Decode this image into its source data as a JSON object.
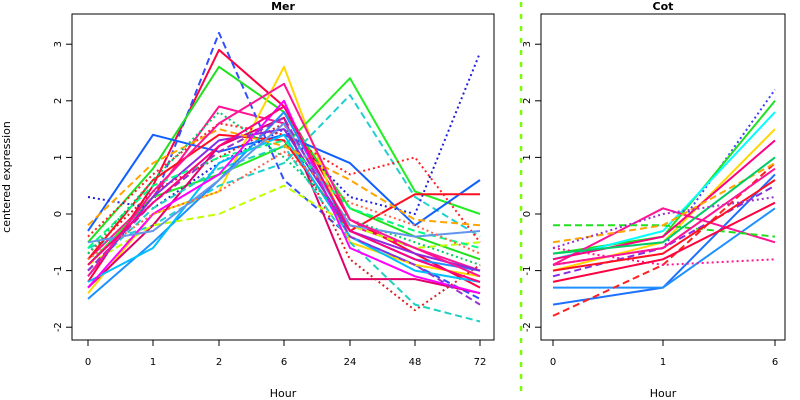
{
  "chart_data": [
    {
      "type": "line",
      "title": "Mer",
      "xlabel": "Hour",
      "ylabel": "centered expression",
      "categories": [
        "0",
        "1",
        "2",
        "6",
        "24",
        "48",
        "72"
      ],
      "ylim": [
        -2,
        3.3
      ],
      "yticks": [
        -2,
        -1,
        0,
        1,
        2,
        3
      ],
      "grid": false,
      "series": [
        {
          "values": [
            -0.8,
            0.3,
            1.9,
            1.6,
            -0.2,
            -0.6,
            -1.0
          ],
          "color": "#ff1493",
          "dash": "solid"
        },
        {
          "values": [
            -1.2,
            0.5,
            2.9,
            1.9,
            -0.1,
            -0.7,
            -1.3
          ],
          "color": "#ff0040",
          "dash": "solid"
        },
        {
          "values": [
            -1.0,
            0.2,
            3.2,
            0.6,
            -0.4,
            -0.9,
            -1.5
          ],
          "color": "#3050ff",
          "dash": "dashed"
        },
        {
          "values": [
            -0.5,
            0.8,
            2.6,
            1.8,
            0.1,
            -0.4,
            -0.8
          ],
          "color": "#20e020",
          "dash": "solid"
        },
        {
          "values": [
            -1.4,
            0.0,
            0.4,
            2.6,
            -0.5,
            -0.9,
            -1.1
          ],
          "color": "#ffd700",
          "dash": "solid"
        },
        {
          "values": [
            -0.9,
            0.3,
            0.7,
            1.2,
            2.4,
            0.4,
            0.0
          ],
          "color": "#22ee22",
          "dash": "solid"
        },
        {
          "values": [
            -0.6,
            -0.2,
            0.5,
            0.9,
            2.1,
            0.3,
            -0.4
          ],
          "color": "#20d0d0",
          "dash": "dashed"
        },
        {
          "values": [
            -0.3,
            1.4,
            1.1,
            1.4,
            0.9,
            -0.2,
            0.6
          ],
          "color": "#1060ff",
          "dash": "solid"
        },
        {
          "values": [
            0.3,
            0.1,
            0.9,
            1.5,
            0.3,
            0.0,
            2.85
          ],
          "color": "#2020dd",
          "dash": "dotted"
        },
        {
          "values": [
            -0.8,
            0.6,
            1.4,
            1.3,
            -0.3,
            0.35,
            0.35
          ],
          "color": "#ff1020",
          "dash": "solid"
        },
        {
          "values": [
            -0.4,
            0.7,
            1.6,
            1.4,
            0.7,
            1.0,
            -0.5
          ],
          "color": "#ff2020",
          "dash": "dotted"
        },
        {
          "values": [
            -1.3,
            -0.2,
            1.2,
            1.7,
            -1.15,
            -1.15,
            -1.4
          ],
          "color": "#e0006a",
          "dash": "solid"
        },
        {
          "values": [
            -0.7,
            0.4,
            1.0,
            1.6,
            -0.8,
            -1.7,
            -0.9
          ],
          "color": "#dd2020",
          "dash": "dotted"
        },
        {
          "values": [
            -1.0,
            0.1,
            0.8,
            1.2,
            -0.5,
            -1.6,
            -1.9
          ],
          "color": "#20d0c0",
          "dash": "dashed"
        },
        {
          "values": [
            -1.5,
            -0.5,
            0.6,
            1.8,
            -0.3,
            -0.8,
            -1.0
          ],
          "color": "#1e90ff",
          "dash": "solid"
        },
        {
          "values": [
            -1.2,
            -0.6,
            0.9,
            1.4,
            -0.4,
            -1.0,
            -1.2
          ],
          "color": "#00bfff",
          "dash": "solid"
        },
        {
          "values": [
            -0.9,
            -0.2,
            0.0,
            0.5,
            -0.2,
            -0.6,
            -0.5
          ],
          "color": "#c0ff00",
          "dash": "dashed"
        },
        {
          "values": [
            -1.1,
            0.3,
            1.3,
            1.5,
            -0.3,
            -0.7,
            -1.0
          ],
          "color": "#8a2be2",
          "dash": "solid"
        },
        {
          "values": [
            -0.6,
            0.5,
            1.0,
            1.3,
            0.1,
            -0.3,
            -0.6
          ],
          "color": "#00ff7f",
          "dash": "dashed"
        },
        {
          "values": [
            -0.2,
            0.9,
            1.5,
            1.2,
            0.6,
            -0.1,
            -0.2
          ],
          "color": "#ffa500",
          "dash": "dashed"
        },
        {
          "values": [
            -1.3,
            0.0,
            0.7,
            2.0,
            -0.6,
            -1.1,
            -1.4
          ],
          "color": "#ff00ff",
          "dash": "solid"
        },
        {
          "values": [
            -0.7,
            0.6,
            1.8,
            1.0,
            -0.1,
            -0.5,
            -0.9
          ],
          "color": "#00cc66",
          "dash": "dotted"
        },
        {
          "values": [
            -0.5,
            -0.3,
            0.6,
            1.6,
            -0.2,
            -0.4,
            -0.3
          ],
          "color": "#6495ed",
          "dash": "solid"
        },
        {
          "values": [
            -1.0,
            0.2,
            1.1,
            1.7,
            -0.4,
            -0.9,
            -1.6
          ],
          "color": "#9932cc",
          "dash": "dashed"
        },
        {
          "values": [
            -0.8,
            0.0,
            0.4,
            1.1,
            0.2,
            -0.2,
            -0.7
          ],
          "color": "#ff6347",
          "dash": "dotted"
        },
        {
          "values": [
            -1.1,
            0.4,
            1.6,
            2.3,
            -0.1,
            -0.6,
            -1.1
          ],
          "color": "#ff1493",
          "dash": "solid"
        },
        {
          "values": [
            -0.9,
            0.2,
            1.2,
            1.9,
            -0.3,
            -0.8,
            -1.2
          ],
          "color": "#ff007f",
          "dash": "solid"
        }
      ]
    },
    {
      "type": "line",
      "title": "Cot",
      "xlabel": "Hour",
      "ylabel": "",
      "categories": [
        "0",
        "1",
        "6"
      ],
      "ylim": [
        -2,
        3.3
      ],
      "yticks": [
        -2,
        -1,
        0,
        1,
        2,
        3
      ],
      "grid": false,
      "series": [
        {
          "values": [
            -0.9,
            -0.6,
            2.2
          ],
          "color": "#4040ff",
          "dash": "dotted"
        },
        {
          "values": [
            -0.7,
            -0.4,
            2.0
          ],
          "color": "#20e020",
          "dash": "solid"
        },
        {
          "values": [
            -0.8,
            -0.3,
            1.8
          ],
          "color": "#00ffff",
          "dash": "solid"
        },
        {
          "values": [
            -1.0,
            -0.5,
            1.5
          ],
          "color": "#ffd700",
          "dash": "solid"
        },
        {
          "values": [
            -1.6,
            -1.3,
            0.7
          ],
          "color": "#1e70ff",
          "dash": "solid"
        },
        {
          "values": [
            -1.3,
            -1.3,
            0.1
          ],
          "color": "#1e90ff",
          "dash": "solid"
        },
        {
          "values": [
            -1.8,
            -0.9,
            0.9
          ],
          "color": "#ff2020",
          "dash": "dashed"
        },
        {
          "values": [
            -0.9,
            0.1,
            -0.5
          ],
          "color": "#ff1493",
          "dash": "solid"
        },
        {
          "values": [
            -0.2,
            -0.2,
            -0.4
          ],
          "color": "#20e020",
          "dash": "dashed"
        },
        {
          "values": [
            -0.6,
            -0.9,
            -0.8
          ],
          "color": "#ff1493",
          "dash": "dotted"
        },
        {
          "values": [
            -0.8,
            -0.4,
            1.3
          ],
          "color": "#ff007f",
          "dash": "solid"
        },
        {
          "values": [
            -1.1,
            -0.6,
            0.5
          ],
          "color": "#8a2be2",
          "dash": "dashed"
        },
        {
          "values": [
            -0.5,
            -0.2,
            0.9
          ],
          "color": "#ffa500",
          "dash": "dashed"
        },
        {
          "values": [
            -1.2,
            -0.8,
            0.2
          ],
          "color": "#ff0040",
          "dash": "solid"
        },
        {
          "values": [
            -0.7,
            -0.5,
            1.0
          ],
          "color": "#00cc66",
          "dash": "solid"
        },
        {
          "values": [
            -1.0,
            -0.7,
            0.6
          ],
          "color": "#ff1020",
          "dash": "solid"
        },
        {
          "values": [
            -0.6,
            0.0,
            0.3
          ],
          "color": "#9932cc",
          "dash": "dotted"
        },
        {
          "values": [
            -0.9,
            -0.6,
            0.8
          ],
          "color": "#ff1493",
          "dash": "solid"
        }
      ]
    }
  ]
}
